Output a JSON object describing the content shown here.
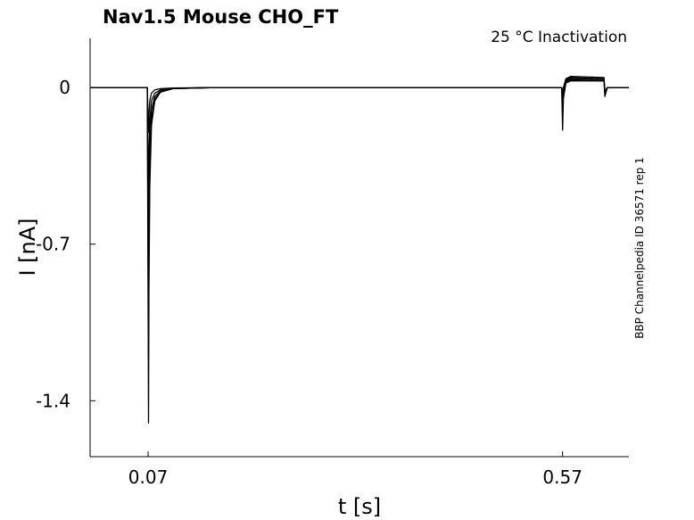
{
  "chart_data": {
    "type": "line",
    "title": "Nav1.5  Mouse  CHO_FT",
    "annotation": "25 °C  Inactivation",
    "side_label": "BBP Channelpedia ID 36571 rep 1",
    "xlabel": "t [s]",
    "ylabel": "I [nA]",
    "xlim": [
      0.0,
      0.65
    ],
    "ylim": [
      -1.65,
      0.22
    ],
    "xticks": [
      0.07,
      0.57
    ],
    "xtick_labels": [
      "0.07",
      "0.57"
    ],
    "yticks": [
      0,
      -0.7,
      -1.4
    ],
    "ytick_labels": [
      "0",
      "-0.7",
      "-1.4"
    ],
    "grid": false,
    "legend": "none",
    "series": [
      {
        "peak": -1.5,
        "x": [
          0.0,
          0.015,
          0.069,
          0.0705,
          0.071,
          0.072,
          0.074,
          0.078,
          0.085,
          0.1,
          0.15,
          0.3,
          0.5,
          0.569,
          0.57,
          0.571,
          0.574,
          0.58,
          0.62,
          0.621,
          0.624,
          0.65
        ],
        "y": [
          0.0,
          0.0,
          0.0,
          -1.5,
          -0.9,
          -0.45,
          -0.17,
          -0.06,
          -0.02,
          -0.005,
          0.0,
          0.0,
          0.0,
          0.0,
          -0.19,
          -0.05,
          0.02,
          0.03,
          0.03,
          -0.04,
          0.0,
          0.0
        ]
      },
      {
        "peak": -1.2,
        "x": [
          0.0,
          0.015,
          0.069,
          0.0705,
          0.071,
          0.072,
          0.074,
          0.078,
          0.085,
          0.1,
          0.15,
          0.3,
          0.5,
          0.569,
          0.57,
          0.571,
          0.574,
          0.58,
          0.62,
          0.621,
          0.624,
          0.65
        ],
        "y": [
          0.0,
          0.0,
          0.0,
          -1.2,
          -0.72,
          -0.36,
          -0.14,
          -0.05,
          -0.02,
          -0.005,
          0.0,
          0.0,
          0.0,
          0.0,
          -0.12,
          -0.03,
          0.025,
          0.035,
          0.03,
          -0.03,
          0.0,
          0.0
        ]
      },
      {
        "peak": -0.85,
        "x": [
          0.0,
          0.015,
          0.069,
          0.0705,
          0.071,
          0.072,
          0.074,
          0.078,
          0.085,
          0.1,
          0.15,
          0.3,
          0.5,
          0.569,
          0.57,
          0.571,
          0.574,
          0.58,
          0.62,
          0.621,
          0.624,
          0.65
        ],
        "y": [
          0.0,
          0.0,
          0.0,
          -0.85,
          -0.51,
          -0.26,
          -0.1,
          -0.04,
          -0.015,
          -0.004,
          0.0,
          0.0,
          0.0,
          0.0,
          -0.07,
          -0.02,
          0.03,
          0.04,
          0.035,
          -0.025,
          0.0,
          0.0
        ]
      },
      {
        "peak": -0.5,
        "x": [
          0.0,
          0.015,
          0.069,
          0.0705,
          0.071,
          0.072,
          0.074,
          0.078,
          0.085,
          0.1,
          0.15,
          0.3,
          0.5,
          0.569,
          0.57,
          0.571,
          0.574,
          0.58,
          0.62,
          0.621,
          0.624,
          0.65
        ],
        "y": [
          0.0,
          0.0,
          0.0,
          -0.5,
          -0.3,
          -0.15,
          -0.06,
          -0.025,
          -0.01,
          -0.003,
          0.0,
          0.0,
          0.0,
          0.0,
          -0.04,
          -0.01,
          0.035,
          0.045,
          0.04,
          -0.02,
          0.0,
          0.0
        ]
      },
      {
        "peak": -0.2,
        "x": [
          0.0,
          0.015,
          0.069,
          0.0705,
          0.071,
          0.072,
          0.074,
          0.078,
          0.085,
          0.1,
          0.15,
          0.3,
          0.5,
          0.569,
          0.57,
          0.571,
          0.574,
          0.58,
          0.62,
          0.621,
          0.624,
          0.65
        ],
        "y": [
          0.0,
          0.0,
          0.0,
          -0.2,
          -0.12,
          -0.06,
          -0.025,
          -0.01,
          -0.005,
          -0.002,
          0.0,
          0.0,
          0.0,
          0.0,
          -0.02,
          0.0,
          0.04,
          0.05,
          0.045,
          -0.015,
          0.0,
          0.0
        ]
      }
    ]
  }
}
